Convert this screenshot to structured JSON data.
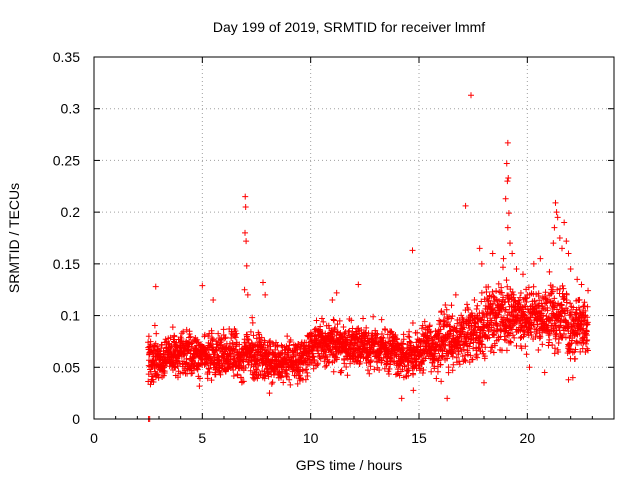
{
  "chart_data": {
    "type": "scatter",
    "title": "Day 199 of 2019, SRMTID for receiver lmmf",
    "xlabel": "GPS time / hours",
    "ylabel": "SRMTID / TECUs",
    "xlim": [
      0,
      24
    ],
    "ylim": [
      0,
      0.35
    ],
    "xticks": [
      0,
      5,
      10,
      15,
      20
    ],
    "xtick_labels": [
      "0",
      "5",
      "10",
      "15",
      "20"
    ],
    "yticks": [
      0,
      0.05,
      0.1,
      0.15,
      0.2,
      0.25,
      0.3,
      0.35
    ],
    "ytick_labels": [
      "0",
      "0.05",
      "0.1",
      "0.15",
      "0.2",
      "0.25",
      "0.3",
      "0.35"
    ],
    "grid": true,
    "marker": "+",
    "color": "#ff0000",
    "data_start_hours": 2.5,
    "data_end_hours": 22.8,
    "sample_interval_hours": 0.02,
    "baseline_profile": [
      {
        "x": 2.5,
        "y": 0.058
      },
      {
        "x": 5.0,
        "y": 0.065
      },
      {
        "x": 7.0,
        "y": 0.062
      },
      {
        "x": 9.0,
        "y": 0.055
      },
      {
        "x": 11.0,
        "y": 0.074
      },
      {
        "x": 13.0,
        "y": 0.07
      },
      {
        "x": 14.5,
        "y": 0.06
      },
      {
        "x": 16.0,
        "y": 0.075
      },
      {
        "x": 17.5,
        "y": 0.085
      },
      {
        "x": 19.0,
        "y": 0.105
      },
      {
        "x": 21.0,
        "y": 0.1
      },
      {
        "x": 22.8,
        "y": 0.09
      }
    ],
    "spread": 0.018,
    "notable_points": [
      {
        "x": 2.52,
        "y": 0.0
      },
      {
        "x": 2.57,
        "y": 0.0
      },
      {
        "x": 2.85,
        "y": 0.128
      },
      {
        "x": 5.0,
        "y": 0.129
      },
      {
        "x": 5.5,
        "y": 0.115
      },
      {
        "x": 6.98,
        "y": 0.215
      },
      {
        "x": 7.0,
        "y": 0.205
      },
      {
        "x": 6.97,
        "y": 0.18
      },
      {
        "x": 7.02,
        "y": 0.172
      },
      {
        "x": 7.05,
        "y": 0.148
      },
      {
        "x": 6.95,
        "y": 0.125
      },
      {
        "x": 7.1,
        "y": 0.12
      },
      {
        "x": 7.3,
        "y": 0.098
      },
      {
        "x": 7.8,
        "y": 0.132
      },
      {
        "x": 7.9,
        "y": 0.12
      },
      {
        "x": 8.1,
        "y": 0.025
      },
      {
        "x": 11.0,
        "y": 0.115
      },
      {
        "x": 11.2,
        "y": 0.122
      },
      {
        "x": 12.2,
        "y": 0.13
      },
      {
        "x": 14.2,
        "y": 0.02
      },
      {
        "x": 14.7,
        "y": 0.163
      },
      {
        "x": 16.3,
        "y": 0.02
      },
      {
        "x": 16.5,
        "y": 0.11
      },
      {
        "x": 16.7,
        "y": 0.12
      },
      {
        "x": 17.15,
        "y": 0.206
      },
      {
        "x": 17.4,
        "y": 0.313
      },
      {
        "x": 17.8,
        "y": 0.165
      },
      {
        "x": 17.9,
        "y": 0.15
      },
      {
        "x": 18.0,
        "y": 0.035
      },
      {
        "x": 18.4,
        "y": 0.16
      },
      {
        "x": 18.9,
        "y": 0.155
      },
      {
        "x": 19.1,
        "y": 0.267
      },
      {
        "x": 19.05,
        "y": 0.247
      },
      {
        "x": 19.12,
        "y": 0.233
      },
      {
        "x": 19.08,
        "y": 0.23
      },
      {
        "x": 19.0,
        "y": 0.213
      },
      {
        "x": 19.15,
        "y": 0.199
      },
      {
        "x": 19.1,
        "y": 0.185
      },
      {
        "x": 19.2,
        "y": 0.17
      },
      {
        "x": 19.3,
        "y": 0.16
      },
      {
        "x": 19.5,
        "y": 0.145
      },
      {
        "x": 19.8,
        "y": 0.14
      },
      {
        "x": 20.1,
        "y": 0.05
      },
      {
        "x": 20.3,
        "y": 0.15
      },
      {
        "x": 20.6,
        "y": 0.155
      },
      {
        "x": 20.8,
        "y": 0.045
      },
      {
        "x": 21.2,
        "y": 0.17
      },
      {
        "x": 21.25,
        "y": 0.185
      },
      {
        "x": 21.3,
        "y": 0.209
      },
      {
        "x": 21.35,
        "y": 0.2
      },
      {
        "x": 21.4,
        "y": 0.195
      },
      {
        "x": 21.5,
        "y": 0.175
      },
      {
        "x": 21.6,
        "y": 0.165
      },
      {
        "x": 21.7,
        "y": 0.19
      },
      {
        "x": 21.8,
        "y": 0.172
      },
      {
        "x": 21.9,
        "y": 0.16
      },
      {
        "x": 22.0,
        "y": 0.145
      },
      {
        "x": 22.3,
        "y": 0.135
      },
      {
        "x": 22.5,
        "y": 0.13
      },
      {
        "x": 21.9,
        "y": 0.038
      },
      {
        "x": 22.1,
        "y": 0.04
      },
      {
        "x": 22.6,
        "y": 0.1
      },
      {
        "x": 22.75,
        "y": 0.085
      }
    ]
  }
}
